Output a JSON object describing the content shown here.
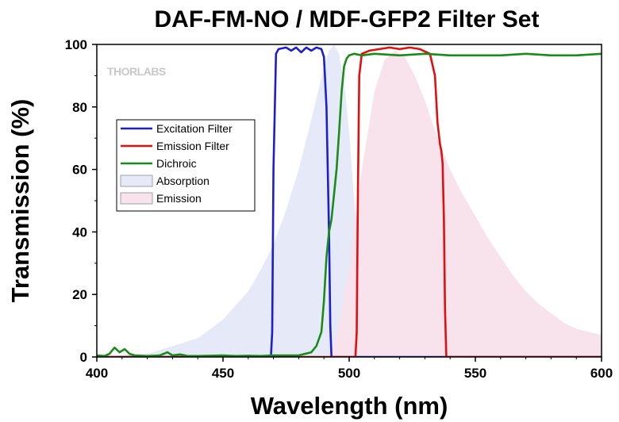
{
  "chart_data": {
    "type": "line",
    "title": "DAF-FM-NO / MDF-GFP2 Filter Set",
    "xlabel": "Wavelength (nm)",
    "ylabel": "Transmission (%)",
    "xlim": [
      400,
      600
    ],
    "ylim": [
      0,
      100
    ],
    "xticks": [
      "400",
      "450",
      "500",
      "550",
      "600"
    ],
    "yticks": [
      "0",
      "20",
      "40",
      "60",
      "80",
      "100"
    ],
    "watermark": "THORLABS",
    "legend_position": "upper-left",
    "series": [
      {
        "name": "Excitation Filter",
        "kind": "line",
        "color": "#1e1ecc",
        "x": [
          400,
          469,
          469.5,
          470,
          471,
          472,
          475,
          477,
          479,
          481,
          483,
          485,
          487,
          489,
          490,
          491,
          492,
          492.5,
          493,
          600
        ],
        "y": [
          0,
          0,
          8,
          60,
          97,
          98.5,
          99,
          98,
          99,
          97.5,
          99,
          98,
          99,
          98.5,
          96,
          80,
          40,
          10,
          0,
          0
        ]
      },
      {
        "name": "Emission Filter",
        "kind": "line",
        "color": "#e01010",
        "x": [
          400,
          502.5,
          503,
          503.5,
          504,
          505,
          508,
          512,
          516,
          520,
          524,
          528,
          532,
          534,
          535,
          536,
          536.5,
          537,
          537.5,
          538,
          538.5,
          600
        ],
        "y": [
          0,
          0,
          8,
          55,
          90,
          97,
          98,
          98.5,
          99,
          98.5,
          99,
          98.5,
          97,
          90,
          75,
          68,
          66,
          62,
          45,
          15,
          0,
          0
        ]
      },
      {
        "name": "Dichroic",
        "kind": "line",
        "color": "#1a8a1a",
        "x": [
          400,
          403,
          405,
          407,
          409,
          411,
          413,
          415,
          420,
          425,
          428,
          430,
          433,
          436,
          440,
          445,
          450,
          455,
          460,
          465,
          470,
          480,
          485,
          487,
          489,
          490,
          491,
          492,
          493,
          494,
          495,
          496,
          497,
          498,
          499,
          500,
          502,
          505,
          510,
          520,
          530,
          540,
          550,
          560,
          570,
          580,
          590,
          600
        ],
        "y": [
          0.5,
          0.3,
          1,
          3,
          1.5,
          2.5,
          1,
          0.5,
          0.3,
          0.5,
          1.5,
          0.5,
          0.8,
          0.3,
          0.3,
          0.4,
          0.5,
          0.3,
          0.4,
          0.3,
          0.5,
          0.5,
          1.5,
          3.5,
          8,
          18,
          32,
          40,
          44,
          52,
          60,
          72,
          85,
          93,
          95.5,
          96.5,
          97,
          96.5,
          97,
          96.5,
          97,
          96.5,
          96.5,
          96.5,
          97,
          96.5,
          96.5,
          97
        ]
      },
      {
        "name": "Absorption",
        "kind": "area",
        "color": "#e6eaf8",
        "x": [
          400,
          420,
          440,
          450,
          460,
          465,
          470,
          475,
          480,
          485,
          488,
          490,
          492,
          494,
          496,
          498,
          500,
          502,
          504,
          506,
          508,
          510,
          512,
          515,
          520
        ],
        "y": [
          0,
          1,
          6,
          12,
          21,
          28,
          36,
          47,
          60,
          76,
          86,
          93,
          98,
          100,
          97,
          88,
          72,
          50,
          30,
          17,
          9,
          5,
          2,
          1,
          0
        ]
      },
      {
        "name": "Emission",
        "kind": "area",
        "color": "#f8e3ec",
        "x": [
          492,
          495,
          500,
          505,
          510,
          514,
          518,
          522,
          526,
          530,
          535,
          540,
          545,
          550,
          555,
          560,
          565,
          570,
          575,
          580,
          585,
          590,
          595,
          600
        ],
        "y": [
          0,
          6,
          28,
          60,
          85,
          95,
          98,
          96,
          90,
          82,
          70,
          60,
          52,
          45,
          38,
          32,
          26,
          21,
          17,
          14,
          11,
          9,
          8,
          7
        ]
      }
    ]
  }
}
